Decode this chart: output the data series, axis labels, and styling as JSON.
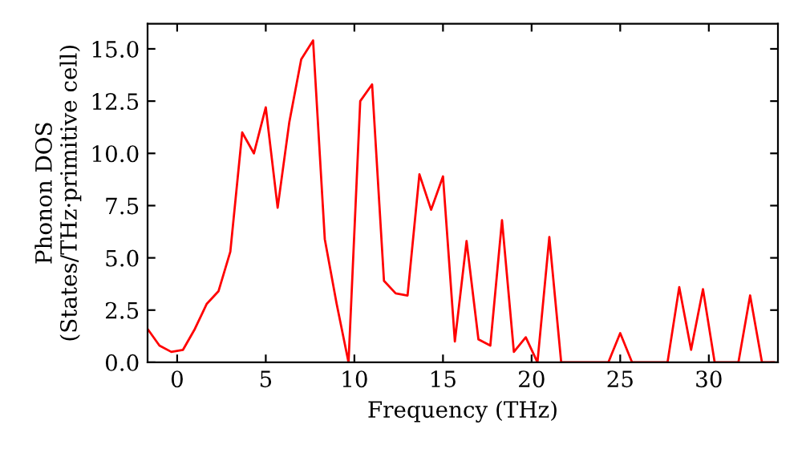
{
  "chart_data": {
    "type": "line",
    "xlabel": "Frequency (THz)",
    "ylabel": "Phonon DOS\n(States/THz·primitive cell)",
    "x": [
      -1.67,
      -1,
      -0.33,
      0.33,
      1,
      1.67,
      2.33,
      3,
      3.67,
      4.33,
      5,
      5.67,
      6.33,
      7,
      7.67,
      8.33,
      9,
      9.67,
      10.33,
      11,
      11.67,
      12.33,
      13,
      13.67,
      14.33,
      15,
      15.67,
      16.33,
      17,
      17.67,
      18.33,
      19,
      19.67,
      20.33,
      21,
      21.67,
      22.33,
      23,
      23.67,
      24.33,
      25,
      25.67,
      26.33,
      27,
      27.67,
      28.33,
      29,
      29.67,
      30.33,
      31,
      31.67,
      32.33,
      33,
      33.67
    ],
    "series": [
      {
        "color": "#ff0000",
        "values": [
          1.6,
          0.8,
          0.5,
          0.6,
          1.6,
          2.8,
          3.4,
          5.3,
          11,
          10,
          12.2,
          7.4,
          11.5,
          14.5,
          15.4,
          5.9,
          2.8,
          0,
          12.5,
          13.3,
          3.9,
          3.3,
          3.2,
          9,
          7.3,
          8.9,
          1,
          5.8,
          1.1,
          0.8,
          6.8,
          0.5,
          1.2,
          0,
          6,
          0,
          0,
          0,
          0,
          0,
          1.4,
          0,
          0,
          0,
          0,
          3.6,
          0.6,
          3.5,
          0,
          0,
          0,
          3.2,
          0,
          0
        ]
      }
    ],
    "xlim": [
      -1.67,
      33.9
    ],
    "ylim": [
      0,
      16.2
    ],
    "xticks": [
      0,
      5,
      10,
      15,
      20,
      25,
      30
    ],
    "yticks": [
      {
        "value": 0,
        "label": "0.0"
      },
      {
        "value": 2.5,
        "label": "2.5"
      },
      {
        "value": 5,
        "label": "5.0"
      },
      {
        "value": 7.5,
        "label": "7.5"
      },
      {
        "value": 10,
        "label": "10.0"
      },
      {
        "value": 12.5,
        "label": "12.5"
      },
      {
        "value": 15,
        "label": "15.0"
      }
    ],
    "grid": false,
    "legend": false,
    "marker": "none",
    "line_style": "solid"
  }
}
